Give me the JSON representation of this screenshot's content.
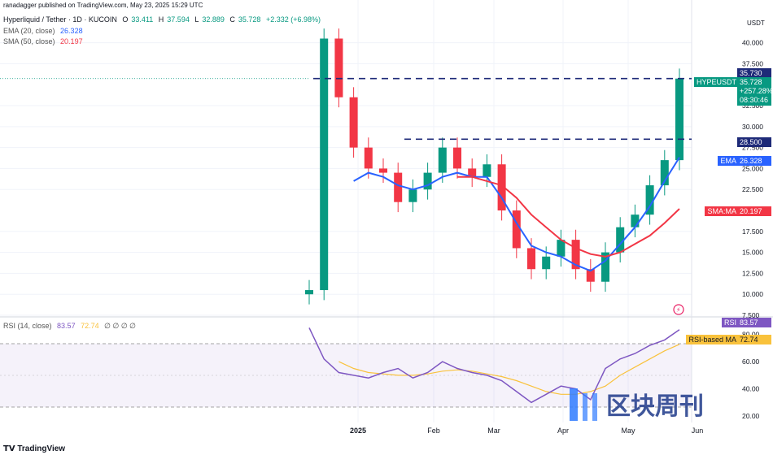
{
  "header": {
    "published_by": "ranadagger published on TradingView.com, May 23, 2025 15:29 UTC",
    "symbol_line": "Hyperliquid / Tether · 1D · KUCOIN",
    "ohlc": {
      "o_label": "O",
      "o": "33.411",
      "h_label": "H",
      "h": "37.594",
      "l_label": "L",
      "l": "32.889",
      "c_label": "C",
      "c": "35.728",
      "change": "+2.332 (+6.98%)"
    },
    "ema_label": "EMA (20, close)",
    "ema_value": "26.328",
    "sma_label": "SMA (50, close)",
    "sma_value": "20.197"
  },
  "rsi_header": {
    "label": "RSI (14, close)",
    "value": "83.57",
    "ma_value": "72.74",
    "extras": "∅ ∅ ∅ ∅"
  },
  "price_axis": {
    "unit": "USDT",
    "ticks": [
      "40.000",
      "37.500",
      "32.500",
      "30.000",
      "27.500",
      "25.000",
      "22.500",
      "17.500",
      "15.000",
      "12.500",
      "10.000",
      "7.500"
    ]
  },
  "price_tags": {
    "resistance_high": "35.730",
    "symbol": "HYPEUSDT",
    "last_price": "35.728",
    "change_pct": "+257.28%",
    "countdown": "08:30:46",
    "resistance_low": "28.500",
    "ema_tag": "EMA",
    "ema_value": "26.328",
    "sma_tag": "SMA:MA",
    "sma_value": "20.197"
  },
  "rsi_axis": {
    "ticks": [
      "80.00",
      "60.00",
      "40.00",
      "20.00"
    ],
    "rsi_tag": "RSI",
    "rsi_value": "83.57",
    "ma_tag": "RSI-based MA",
    "ma_value": "72.74"
  },
  "time_axis": {
    "labels": [
      "2025",
      "Feb",
      "Mar",
      "Apr",
      "May",
      "Jun"
    ]
  },
  "watermark": {
    "text": "区块周刊"
  },
  "footer": {
    "brand": "TradingView"
  },
  "colors": {
    "up": "#089981",
    "down": "#f23645",
    "ema": "#2962ff",
    "sma": "#f23645",
    "rsi": "#7e57c2",
    "rsi_ma": "#f9c23c",
    "resistance": "#1e2a78"
  },
  "chart_data": {
    "type": "candlestick",
    "symbol": "HYPEUSDT",
    "exchange": "KUCOIN",
    "interval": "1D",
    "ylim": [
      7.5,
      42
    ],
    "x": [
      "2024-11-29",
      "2024-12-06",
      "2024-12-13",
      "2024-12-20",
      "2024-12-27",
      "2025-01-03",
      "2025-01-10",
      "2025-01-17",
      "2025-01-24",
      "2025-01-31",
      "2025-02-07",
      "2025-02-14",
      "2025-02-21",
      "2025-02-28",
      "2025-03-07",
      "2025-03-14",
      "2025-03-21",
      "2025-03-28",
      "2025-04-04",
      "2025-04-11",
      "2025-04-18",
      "2025-04-25",
      "2025-05-02",
      "2025-05-09",
      "2025-05-16",
      "2025-05-23"
    ],
    "close": [
      10.5,
      40.5,
      33.5,
      27.5,
      25.0,
      24.5,
      21.0,
      22.5,
      24.5,
      27.5,
      25.0,
      24.0,
      25.5,
      20.0,
      15.5,
      13.0,
      14.5,
      16.5,
      13.0,
      11.5,
      15.0,
      18.0,
      19.5,
      23.0,
      26.0,
      35.728
    ],
    "series": [
      {
        "name": "EMA (20, close)",
        "values": [
          null,
          null,
          null,
          23.5,
          24.5,
          24.0,
          23.0,
          22.5,
          23.0,
          24.0,
          24.5,
          24.0,
          24.0,
          21.5,
          18.5,
          15.8,
          15.0,
          14.5,
          13.5,
          12.8,
          14.0,
          16.0,
          18.0,
          20.5,
          23.5,
          26.328
        ]
      },
      {
        "name": "SMA (50, close)",
        "values": [
          null,
          null,
          null,
          null,
          null,
          null,
          null,
          null,
          null,
          null,
          24.0,
          24.0,
          23.5,
          23.0,
          21.5,
          19.5,
          18.0,
          16.5,
          15.5,
          14.8,
          14.5,
          15.0,
          16.0,
          17.0,
          18.5,
          20.197
        ]
      }
    ],
    "levels": [
      35.73,
      28.5
    ],
    "rsi": {
      "name": "RSI (14, close)",
      "ylim": [
        20,
        90
      ],
      "values": [
        85,
        62,
        52,
        50,
        48,
        52,
        55,
        48,
        52,
        60,
        55,
        52,
        50,
        46,
        38,
        30,
        36,
        42,
        40,
        32,
        55,
        62,
        66,
        72,
        76,
        83.57
      ],
      "ma": [
        null,
        null,
        60,
        55,
        52,
        51,
        50,
        50,
        51,
        53,
        54,
        53,
        51,
        49,
        46,
        42,
        38,
        36,
        36,
        38,
        42,
        50,
        56,
        62,
        68,
        72.74
      ]
    }
  }
}
